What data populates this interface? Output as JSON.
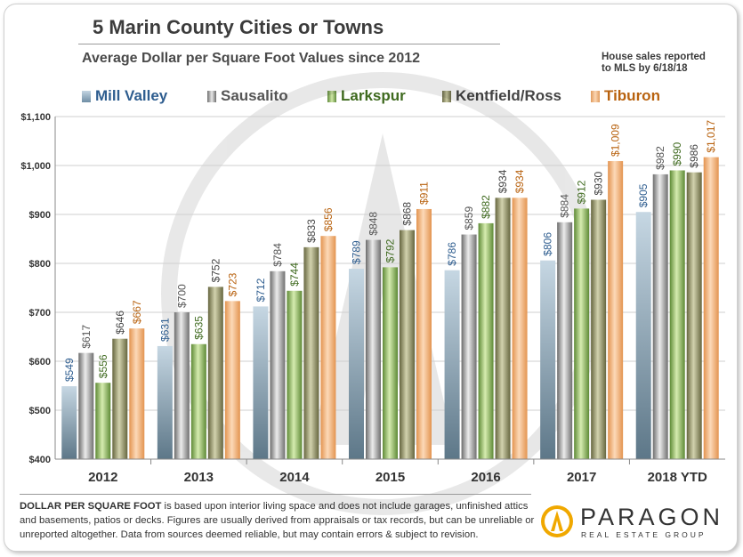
{
  "title": "5 Marin County Cities or Towns",
  "subtitle": "Average Dollar  per Square Foot Values since 2012",
  "note_line1": "House sales reported",
  "note_line2": "to MLS by 6/18/18",
  "footnote_bold": "DOLLAR PER SQUARE FOOT",
  "footnote_rest": " is based upon interior living space and does not include garages, unfinished attics and basements, patios or decks. Figures are usually derived from appraisals or tax records, but can be unreliable or unreported altogether. Data from sources deemed reliable, but may contain errors & subject to revision.",
  "brand_name": "PARAGON",
  "brand_sub": "REAL ESTATE GROUP",
  "colors": {
    "mill_valley": "#2e5d8f",
    "sausalito": "#5a5a5a",
    "larkspur": "#3f6a1f",
    "kentfield": "#5a5a3a",
    "tiburon": "#b8620f"
  },
  "chart_data": {
    "type": "bar",
    "categories": [
      "2012",
      "2013",
      "2014",
      "2015",
      "2016",
      "2017",
      "2018 YTD"
    ],
    "ylim": [
      400,
      1100
    ],
    "yticks": [
      400,
      500,
      600,
      700,
      800,
      900,
      1000,
      1100
    ],
    "ytick_labels": [
      "$400",
      "$500",
      "$600",
      "$700",
      "$800",
      "$900",
      "$1,000",
      "$1,100"
    ],
    "legend_position": "top",
    "grid": true,
    "series": [
      {
        "name": "Mill Valley",
        "values": [
          549,
          631,
          712,
          789,
          786,
          806,
          905
        ],
        "labels": [
          "$549",
          "$631",
          "$712",
          "$789",
          "$786",
          "$806",
          "$905"
        ]
      },
      {
        "name": "Sausalito",
        "values": [
          617,
          700,
          784,
          848,
          859,
          884,
          982
        ],
        "labels": [
          "$617",
          "$700",
          "$784",
          "$848",
          "$859",
          "$884",
          "$982"
        ]
      },
      {
        "name": "Larkspur",
        "values": [
          556,
          635,
          744,
          792,
          882,
          912,
          990
        ],
        "labels": [
          "$556",
          "$635",
          "$744",
          "$792",
          "$882",
          "$912",
          "$990"
        ]
      },
      {
        "name": "Kentfield/Ross",
        "values": [
          646,
          752,
          833,
          868,
          934,
          930,
          986
        ],
        "labels": [
          "$646",
          "$752",
          "$833",
          "$868",
          "$934",
          "$930",
          "$986"
        ]
      },
      {
        "name": "Tiburon",
        "values": [
          667,
          723,
          856,
          911,
          934,
          1009,
          1017
        ],
        "labels": [
          "$667",
          "$723",
          "$856",
          "$911",
          "$934",
          "$1,009",
          "$1,017"
        ]
      }
    ]
  }
}
